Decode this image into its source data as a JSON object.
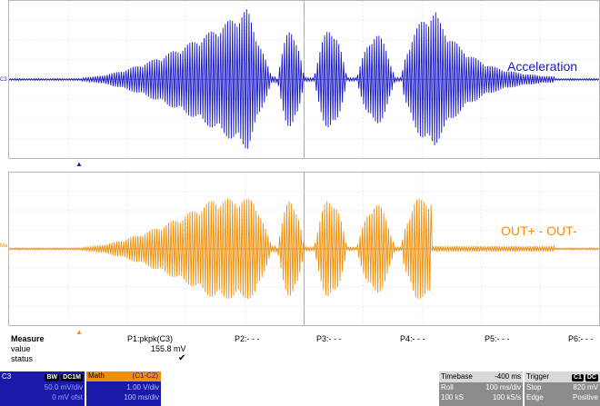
{
  "channels": {
    "top": {
      "marker": "C3",
      "label": "Acceleration",
      "color": "#1818c8"
    },
    "bottom": {
      "marker": "Ma",
      "label": "OUT+ - OUT-",
      "color": "#f0900a"
    }
  },
  "measure": {
    "title": "Measure",
    "row_value": "value",
    "row_status": "status",
    "params": [
      {
        "name": "P1:pkpk(C3)",
        "value": "155.8 mV",
        "status": "✔"
      },
      {
        "name": "P2:- - -"
      },
      {
        "name": "P3:- - -"
      },
      {
        "name": "P4:- - -"
      },
      {
        "name": "P5:- - -"
      },
      {
        "name": "P6:- - -"
      }
    ]
  },
  "channel_box": {
    "label": "C3",
    "badges": [
      "BW",
      "DC1M"
    ],
    "scale": "50.0 mV/div",
    "offset": "0 mV ofst"
  },
  "math_box": {
    "label": "Math",
    "source": "(C1-C2)",
    "vdiv": "1.00 V/div",
    "tdiv": "100 ms/div"
  },
  "timebase_box": {
    "title": "Timebase",
    "delay": "-400 ms",
    "mode": "Roll",
    "tdiv": "100 ms/div",
    "samples": "100 kS",
    "rate": "100 kS/s"
  },
  "trigger_box": {
    "title": "Trigger",
    "badges": [
      "C1",
      "DC"
    ],
    "mode": "Stop",
    "level": "820 mV",
    "type": "Edge",
    "slope": "Positive"
  },
  "colors": {
    "ch3": "#1818c8",
    "math": "#f0900a",
    "grid": "#c8c8c8",
    "box_dark": "#1a1aa8",
    "box_gray": "#8c8c8c"
  },
  "chart_data": [
    {
      "type": "line",
      "series": [
        {
          "name": "Acceleration",
          "trace": "bursts of oscillation: rising ramp then four bursts then decay"
        }
      ]
    },
    {
      "type": "line",
      "series": [
        {
          "name": "OUT+ - OUT-",
          "trace": "clipped burst pattern following the acceleration envelope"
        }
      ]
    }
  ]
}
